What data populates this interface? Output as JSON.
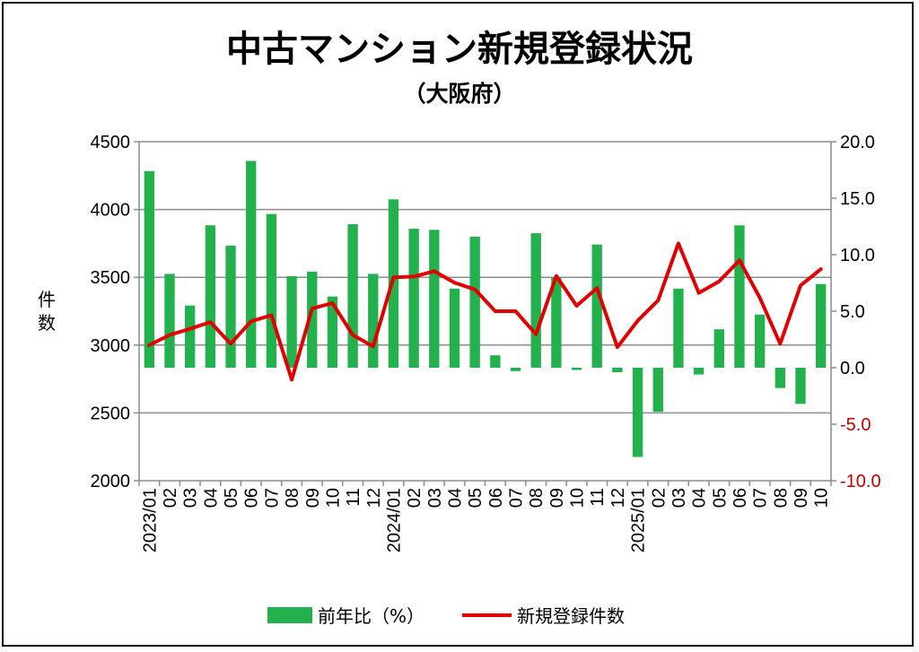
{
  "chart_data": {
    "type": "bar+line",
    "title": "中古マンション新規登録状況",
    "subtitle": "（大阪府）",
    "ylabel_left": "件数",
    "ylim_left": [
      2000,
      4500
    ],
    "yticks_left": [
      "4500",
      "4000",
      "3500",
      "3000",
      "2500",
      "2000"
    ],
    "ylim_right": [
      -10,
      20
    ],
    "yticks_right": [
      "20.0",
      "15.0",
      "10.0",
      "5.0",
      "0.0",
      "-5.0",
      "-10.0"
    ],
    "categories": [
      "2023/01",
      "02",
      "03",
      "04",
      "05",
      "06",
      "07",
      "08",
      "09",
      "10",
      "11",
      "12",
      "2024/01",
      "02",
      "03",
      "04",
      "05",
      "06",
      "07",
      "08",
      "09",
      "10",
      "11",
      "12",
      "2025/01",
      "02",
      "03",
      "04",
      "05",
      "06",
      "07",
      "08",
      "09",
      "10"
    ],
    "series": [
      {
        "name": "前年比（%）",
        "type": "bar",
        "axis": "right",
        "color": "#22b14c",
        "values": [
          17.4,
          8.3,
          5.5,
          12.6,
          10.8,
          18.3,
          13.6,
          8.1,
          8.5,
          6.3,
          12.7,
          8.3,
          14.9,
          12.3,
          12.2,
          7.0,
          11.6,
          1.1,
          -0.3,
          11.9,
          8.0,
          -0.2,
          10.9,
          -0.4,
          -7.9,
          -3.9,
          7.0,
          -0.6,
          3.4,
          12.6,
          4.7,
          -1.8,
          -3.2,
          7.4
        ]
      },
      {
        "name": "新規登録件数",
        "type": "line",
        "axis": "left",
        "color": "#e00000",
        "values": [
          3000,
          3075,
          3120,
          3170,
          3010,
          3175,
          3220,
          2745,
          3270,
          3310,
          3075,
          2990,
          3500,
          3505,
          3545,
          3460,
          3410,
          3250,
          3250,
          3080,
          3510,
          3290,
          3420,
          2985,
          3180,
          3330,
          3750,
          3385,
          3470,
          3625,
          3350,
          3010,
          3440,
          3560
        ]
      }
    ],
    "legend_position": "bottom",
    "grid": true
  }
}
